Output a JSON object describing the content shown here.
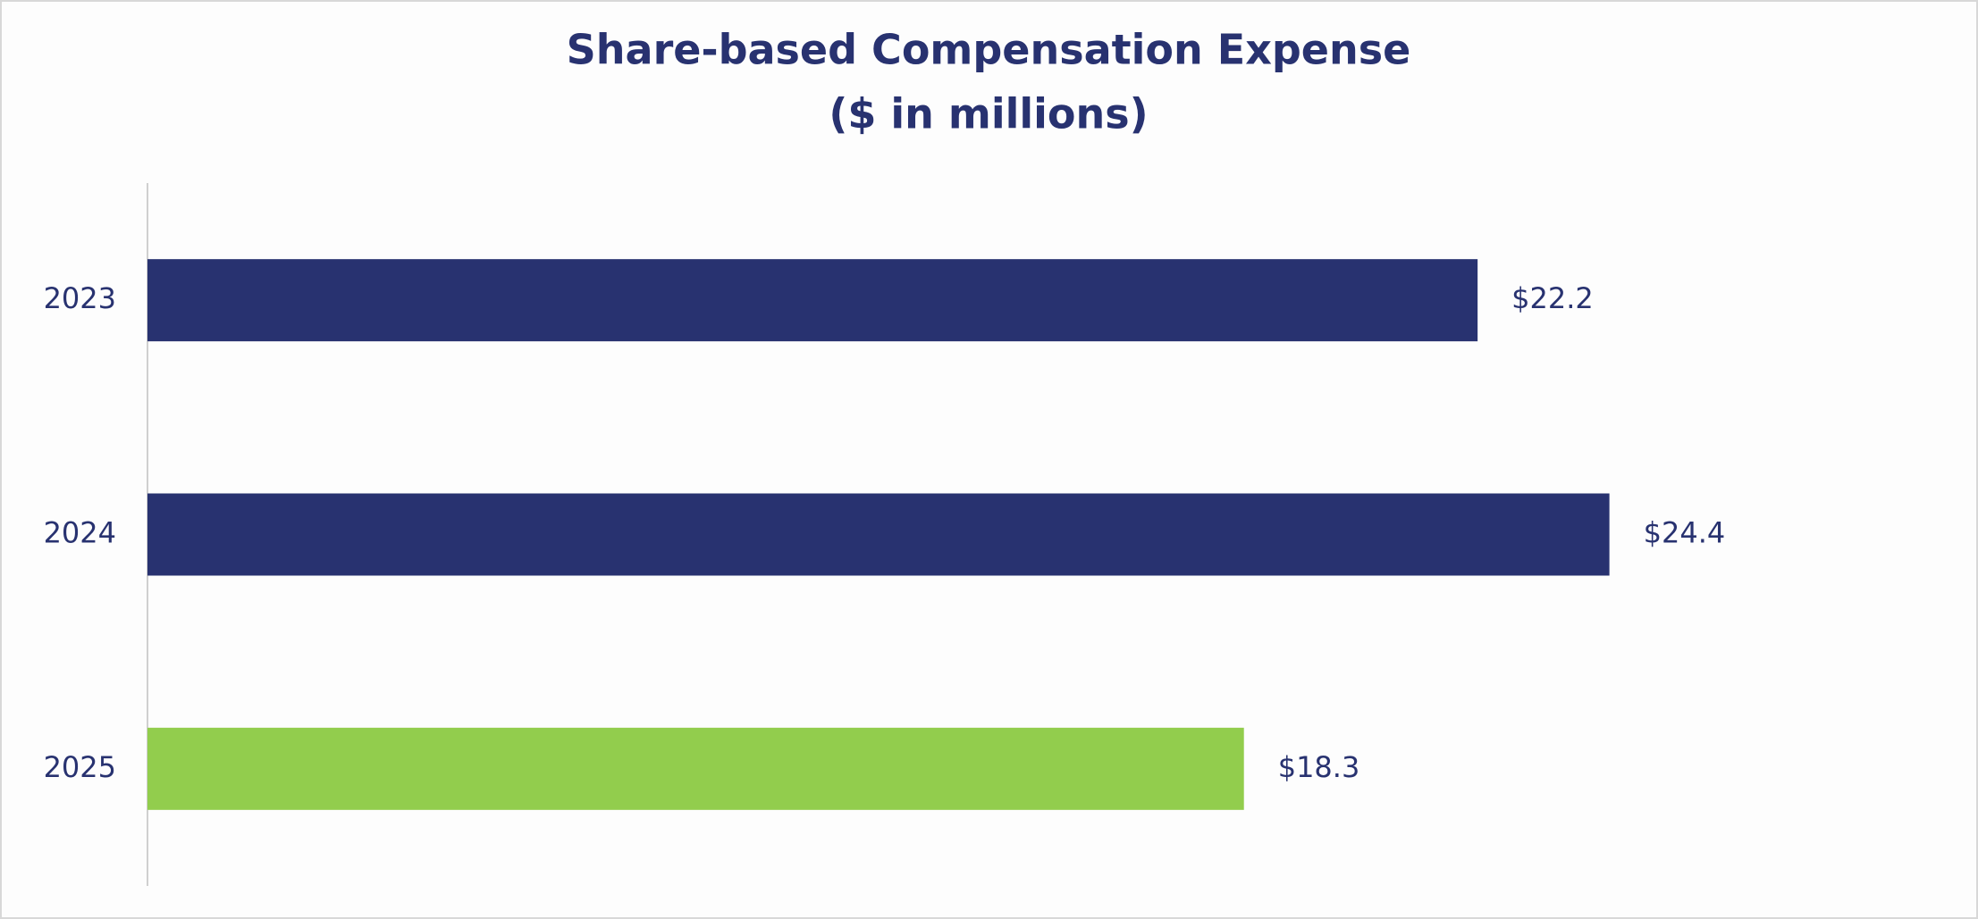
{
  "chart_data": {
    "type": "barh",
    "title": "Share-based Compensation Expense",
    "subtitle": "($ in millions)",
    "categories": [
      "2023",
      "2024",
      "2025"
    ],
    "values": [
      22.2,
      24.4,
      18.3
    ],
    "value_labels": [
      "$22.2",
      "$24.4",
      "$18.3"
    ],
    "colors": [
      "#283270",
      "#283270",
      "#92cd4d"
    ],
    "xlim": [
      0,
      30
    ],
    "grid": false
  }
}
